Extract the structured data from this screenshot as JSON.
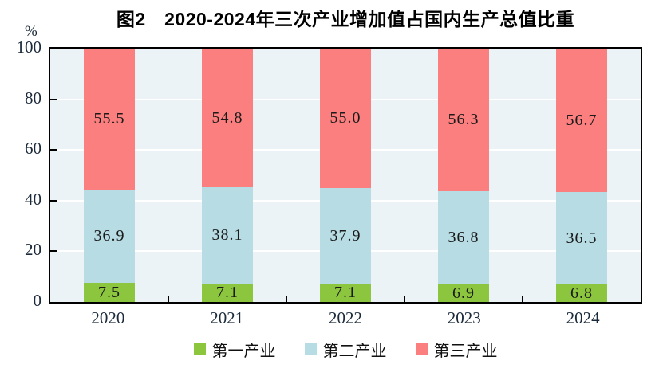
{
  "page": {
    "title_label": "图2　2020-2024年三次产业增加值占国内生产总值比重",
    "y_unit_label": "%"
  },
  "chart_data": {
    "type": "bar",
    "stacked": true,
    "title": "图2 2020-2024年三次产业增加值占国内生产总值比重",
    "categories": [
      "2020",
      "2021",
      "2022",
      "2023",
      "2024"
    ],
    "series": [
      {
        "name": "第一产业",
        "color": "#8CC63F",
        "values": [
          7.5,
          7.1,
          7.1,
          6.9,
          6.8
        ]
      },
      {
        "name": "第二产业",
        "color": "#B7DCE4",
        "values": [
          36.9,
          38.1,
          37.9,
          36.8,
          36.5
        ]
      },
      {
        "name": "第三产业",
        "color": "#FC7F7F",
        "values": [
          55.5,
          54.8,
          55.0,
          56.3,
          56.7
        ]
      }
    ],
    "xlabel": "",
    "ylabel": "%",
    "ylim": [
      0,
      100
    ],
    "yticks": [
      0,
      20,
      40,
      60,
      80,
      100
    ],
    "grid": true,
    "gridline_color": "#FFFFFF",
    "plot_background": "#EBF3F6",
    "axis_color": "#000000",
    "tick_label_color": "#1B2A3A",
    "data_label_color": "#1A1A1A",
    "legend_position": "bottom"
  }
}
